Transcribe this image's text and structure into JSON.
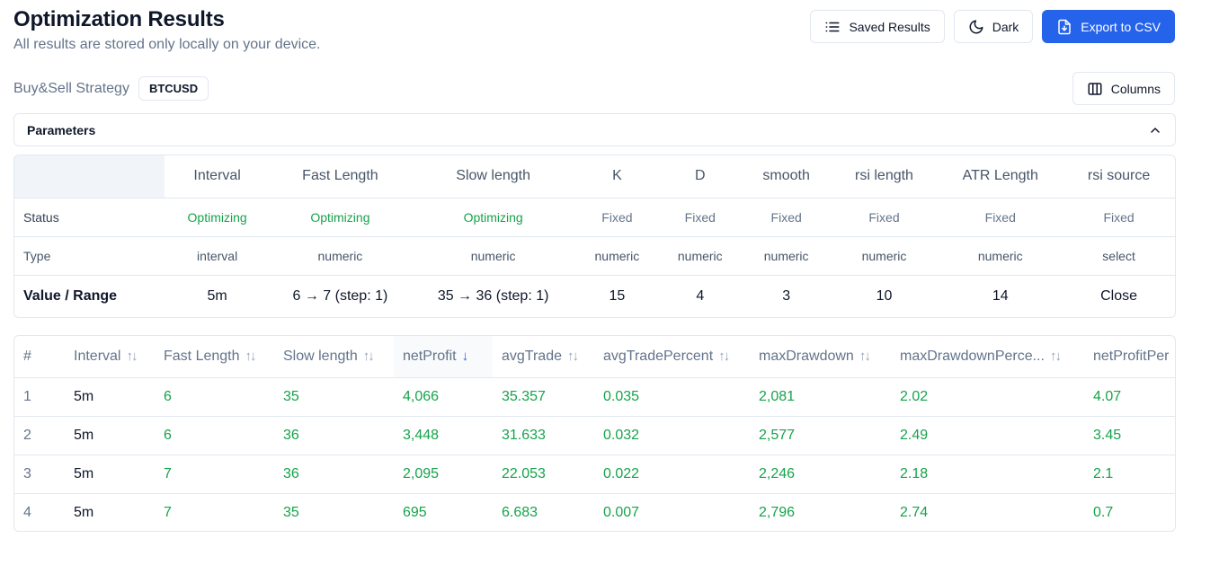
{
  "header": {
    "title": "Optimization Results",
    "subtitle": "All results are stored only locally on your device."
  },
  "toolbar": {
    "saved_results_label": "Saved Results",
    "dark_label": "Dark",
    "export_label": "Export to CSV",
    "columns_label": "Columns"
  },
  "strategy": {
    "name": "Buy&Sell Strategy",
    "symbol": "BTCUSD"
  },
  "parameters_section": {
    "label": "Parameters",
    "row_labels": [
      "Status",
      "Type",
      "Value / Range"
    ],
    "columns": [
      {
        "name": "Interval",
        "status": "Optimizing",
        "type": "interval",
        "value": "5m"
      },
      {
        "name": "Fast Length",
        "status": "Optimizing",
        "type": "numeric",
        "value": "6 → 7 (step: 1)"
      },
      {
        "name": "Slow length",
        "status": "Optimizing",
        "type": "numeric",
        "value": "35 → 36 (step: 1)"
      },
      {
        "name": "K",
        "status": "Fixed",
        "type": "numeric",
        "value": "15"
      },
      {
        "name": "D",
        "status": "Fixed",
        "type": "numeric",
        "value": "4"
      },
      {
        "name": "smooth",
        "status": "Fixed",
        "type": "numeric",
        "value": "3"
      },
      {
        "name": "rsi length",
        "status": "Fixed",
        "type": "numeric",
        "value": "10"
      },
      {
        "name": "ATR Length",
        "status": "Fixed",
        "type": "numeric",
        "value": "14"
      },
      {
        "name": "rsi source",
        "status": "Fixed",
        "type": "select",
        "value": "Close"
      }
    ]
  },
  "results": {
    "columns": [
      {
        "label": "#",
        "sort": "none"
      },
      {
        "label": "Interval",
        "sort": "both"
      },
      {
        "label": "Fast Length",
        "sort": "both"
      },
      {
        "label": "Slow length",
        "sort": "both"
      },
      {
        "label": "netProfit",
        "sort": "desc"
      },
      {
        "label": "avgTrade",
        "sort": "both"
      },
      {
        "label": "avgTradePercent",
        "sort": "both"
      },
      {
        "label": "maxDrawdown",
        "sort": "both"
      },
      {
        "label": "maxDrawdownPerce...",
        "sort": "both"
      },
      {
        "label": "netProfitPer",
        "sort": "none"
      }
    ],
    "rows": [
      [
        "1",
        "5m",
        "6",
        "35",
        "4,066",
        "35.357",
        "0.035",
        "2,081",
        "2.02",
        "4.07"
      ],
      [
        "2",
        "5m",
        "6",
        "36",
        "3,448",
        "31.633",
        "0.032",
        "2,577",
        "2.49",
        "3.45"
      ],
      [
        "3",
        "5m",
        "7",
        "36",
        "2,095",
        "22.053",
        "0.022",
        "2,246",
        "2.18",
        "2.1"
      ],
      [
        "4",
        "5m",
        "7",
        "35",
        "695",
        "6.683",
        "0.007",
        "2,796",
        "2.74",
        "0.7"
      ]
    ]
  },
  "colors": {
    "accent": "#2563eb",
    "positive": "#16a34a",
    "muted": "#64748b"
  }
}
